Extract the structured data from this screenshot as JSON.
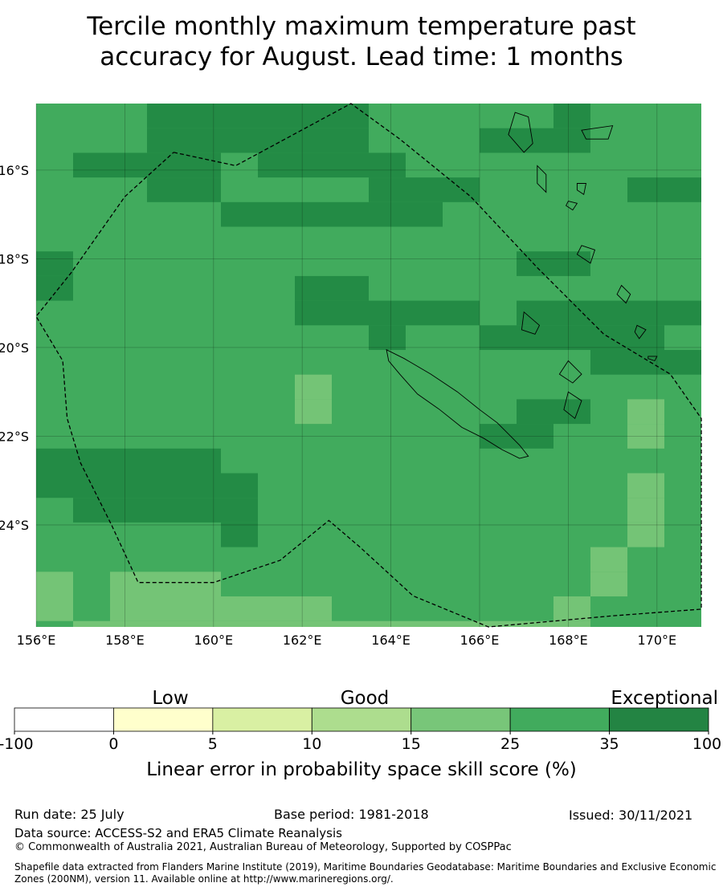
{
  "title_line1": "Tercile monthly maximum temperature past",
  "title_line2": "accuracy for August. Lead time: 1 months",
  "map": {
    "lon_labels": [
      "156°E",
      "158°E",
      "160°E",
      "162°E",
      "164°E",
      "166°E",
      "168°E",
      "170°E"
    ],
    "lat_labels": [
      "16°S",
      "18°S",
      "20°S",
      "22°S",
      "24°S"
    ],
    "grid_layers": [
      {
        "color": "#41ab5d",
        "cells": "all"
      },
      {
        "color": "#238b45",
        "cells": [
          [
            3,
            0
          ],
          [
            4,
            0
          ],
          [
            5,
            0
          ],
          [
            6,
            0
          ],
          [
            7,
            0
          ],
          [
            8,
            0
          ],
          [
            14,
            0
          ],
          [
            25,
            0
          ],
          [
            26,
            0
          ],
          [
            3,
            1
          ],
          [
            4,
            1
          ],
          [
            5,
            1
          ],
          [
            6,
            1
          ],
          [
            7,
            1
          ],
          [
            8,
            1
          ],
          [
            12,
            1
          ],
          [
            13,
            1
          ],
          [
            14,
            1
          ],
          [
            22,
            1
          ],
          [
            26,
            1
          ],
          [
            1,
            2
          ],
          [
            2,
            2
          ],
          [
            3,
            2
          ],
          [
            4,
            2
          ],
          [
            6,
            2
          ],
          [
            7,
            2
          ],
          [
            8,
            2
          ],
          [
            9,
            2
          ],
          [
            22,
            2
          ],
          [
            23,
            2
          ],
          [
            26,
            2
          ],
          [
            3,
            3
          ],
          [
            4,
            3
          ],
          [
            9,
            3
          ],
          [
            10,
            3
          ],
          [
            11,
            3
          ],
          [
            16,
            3
          ],
          [
            17,
            3
          ],
          [
            5,
            4
          ],
          [
            6,
            4
          ],
          [
            7,
            4
          ],
          [
            8,
            4
          ],
          [
            9,
            4
          ],
          [
            10,
            4
          ],
          [
            19,
            4
          ],
          [
            20,
            4
          ],
          [
            21,
            4
          ],
          [
            26,
            4
          ],
          [
            19,
            5
          ],
          [
            20,
            5
          ],
          [
            24,
            5
          ],
          [
            25,
            5
          ],
          [
            26,
            5
          ],
          [
            0,
            6
          ],
          [
            13,
            6
          ],
          [
            14,
            6
          ],
          [
            19,
            6
          ],
          [
            20,
            6
          ],
          [
            21,
            6
          ],
          [
            24,
            6
          ],
          [
            25,
            6
          ],
          [
            26,
            6
          ],
          [
            0,
            7
          ],
          [
            7,
            7
          ],
          [
            8,
            7
          ],
          [
            20,
            7
          ],
          [
            21,
            7
          ],
          [
            22,
            7
          ],
          [
            23,
            7
          ],
          [
            24,
            7
          ],
          [
            25,
            7
          ],
          [
            26,
            7
          ],
          [
            7,
            8
          ],
          [
            8,
            8
          ],
          [
            9,
            8
          ],
          [
            10,
            8
          ],
          [
            11,
            8
          ],
          [
            13,
            8
          ],
          [
            14,
            8
          ],
          [
            15,
            8
          ],
          [
            16,
            8
          ],
          [
            17,
            8
          ],
          [
            18,
            8
          ],
          [
            19,
            8
          ],
          [
            20,
            8
          ],
          [
            21,
            8
          ],
          [
            22,
            8
          ],
          [
            23,
            8
          ],
          [
            24,
            8
          ],
          [
            25,
            8
          ],
          [
            26,
            8
          ],
          [
            9,
            9
          ],
          [
            12,
            9
          ],
          [
            13,
            9
          ],
          [
            14,
            9
          ],
          [
            15,
            9
          ],
          [
            16,
            9
          ],
          [
            20,
            9
          ],
          [
            21,
            9
          ],
          [
            22,
            9
          ],
          [
            23,
            9
          ],
          [
            24,
            9
          ],
          [
            25,
            9
          ],
          [
            26,
            9
          ],
          [
            15,
            10
          ],
          [
            16,
            10
          ],
          [
            17,
            10
          ],
          [
            18,
            10
          ],
          [
            19,
            10
          ],
          [
            20,
            10
          ],
          [
            21,
            10
          ],
          [
            22,
            10
          ],
          [
            23,
            10
          ],
          [
            24,
            10
          ],
          [
            25,
            10
          ],
          [
            26,
            10
          ],
          [
            22,
            11
          ],
          [
            25,
            11
          ],
          [
            26,
            11
          ],
          [
            13,
            12
          ],
          [
            14,
            12
          ],
          [
            12,
            13
          ],
          [
            13,
            13
          ],
          [
            0,
            14
          ],
          [
            1,
            14
          ],
          [
            2,
            14
          ],
          [
            3,
            14
          ],
          [
            4,
            14
          ],
          [
            25,
            14
          ],
          [
            26,
            14
          ],
          [
            0,
            15
          ],
          [
            1,
            15
          ],
          [
            2,
            15
          ],
          [
            3,
            15
          ],
          [
            4,
            15
          ],
          [
            5,
            15
          ],
          [
            22,
            15
          ],
          [
            23,
            15
          ],
          [
            24,
            15
          ],
          [
            25,
            15
          ],
          [
            26,
            15
          ],
          [
            1,
            16
          ],
          [
            2,
            16
          ],
          [
            3,
            16
          ],
          [
            4,
            16
          ],
          [
            5,
            16
          ],
          [
            5,
            17
          ],
          [
            26,
            19
          ]
        ]
      },
      {
        "color": "#74c476",
        "cells": [
          [
            20,
            1
          ],
          [
            21,
            1
          ],
          [
            21,
            3
          ],
          [
            7,
            11
          ],
          [
            7,
            12
          ],
          [
            16,
            12
          ],
          [
            16,
            13
          ],
          [
            16,
            15
          ],
          [
            21,
            15
          ],
          [
            16,
            16
          ],
          [
            16,
            17
          ],
          [
            24,
            17
          ],
          [
            15,
            18
          ],
          [
            15,
            19
          ],
          [
            0,
            19
          ],
          [
            2,
            19
          ],
          [
            3,
            19
          ],
          [
            4,
            19
          ],
          [
            0,
            20
          ],
          [
            2,
            20
          ],
          [
            3,
            20
          ],
          [
            4,
            20
          ],
          [
            5,
            20
          ],
          [
            6,
            20
          ],
          [
            7,
            20
          ],
          [
            14,
            20
          ],
          [
            19,
            19
          ],
          [
            20,
            19
          ],
          [
            21,
            19
          ],
          [
            22,
            19
          ],
          [
            23,
            19
          ],
          [
            24,
            19
          ],
          [
            25,
            19
          ],
          [
            19,
            20
          ],
          [
            20,
            20
          ],
          [
            21,
            20
          ],
          [
            22,
            20
          ],
          [
            23,
            20
          ],
          [
            24,
            20
          ],
          [
            25,
            20
          ],
          [
            22,
            21
          ],
          [
            23,
            21
          ],
          [
            1,
            21
          ],
          [
            2,
            21
          ],
          [
            3,
            21
          ],
          [
            4,
            21
          ],
          [
            5,
            21
          ],
          [
            6,
            21
          ],
          [
            7,
            21
          ],
          [
            8,
            21
          ],
          [
            9,
            21
          ],
          [
            10,
            21
          ],
          [
            11,
            21
          ],
          [
            12,
            21
          ],
          [
            13,
            21
          ],
          [
            14,
            21
          ]
        ]
      }
    ],
    "boundary": [
      [
        159.1,
        -15.6
      ],
      [
        160.5,
        -15.9
      ],
      [
        163.1,
        -14.4
      ],
      [
        164.2,
        -15.3
      ],
      [
        165.8,
        -16.6
      ],
      [
        167.3,
        -18.2
      ],
      [
        168.8,
        -19.7
      ],
      [
        170.3,
        -20.6
      ],
      [
        171.3,
        -21.6
      ],
      [
        172.0,
        -21.8
      ],
      [
        172.8,
        -25.7
      ],
      [
        171.3,
        -25.9
      ],
      [
        169.0,
        -26.05
      ],
      [
        166.2,
        -26.35
      ],
      [
        164.5,
        -25.6
      ],
      [
        163.3,
        -24.5
      ],
      [
        162.6,
        -23.9
      ],
      [
        161.5,
        -24.8
      ],
      [
        160.0,
        -25.3
      ],
      [
        158.3,
        -25.3
      ],
      [
        157.7,
        -24.0
      ],
      [
        157.0,
        -22.6
      ],
      [
        156.7,
        -21.6
      ],
      [
        156.6,
        -20.3
      ],
      [
        155.8,
        -19.3
      ],
      [
        156.8,
        -18.3
      ],
      [
        158.0,
        -16.6
      ],
      [
        159.1,
        -15.6
      ]
    ],
    "islands": [
      [
        [
          163.9,
          -20.05
        ],
        [
          164.3,
          -20.25
        ],
        [
          164.9,
          -20.6
        ],
        [
          165.5,
          -21.0
        ],
        [
          166.0,
          -21.4
        ],
        [
          166.4,
          -21.7
        ],
        [
          166.9,
          -22.2
        ],
        [
          167.1,
          -22.45
        ],
        [
          166.9,
          -22.5
        ],
        [
          166.5,
          -22.3
        ],
        [
          166.1,
          -22.05
        ],
        [
          165.6,
          -21.8
        ],
        [
          165.1,
          -21.4
        ],
        [
          164.6,
          -21.05
        ],
        [
          164.2,
          -20.6
        ],
        [
          163.95,
          -20.3
        ],
        [
          163.9,
          -20.05
        ]
      ],
      [
        [
          167.0,
          -19.2
        ],
        [
          167.35,
          -19.5
        ],
        [
          167.25,
          -19.7
        ],
        [
          166.95,
          -19.6
        ],
        [
          167.0,
          -19.2
        ]
      ],
      [
        [
          168.0,
          -20.3
        ],
        [
          168.3,
          -20.6
        ],
        [
          168.1,
          -20.8
        ],
        [
          167.8,
          -20.6
        ],
        [
          168.0,
          -20.3
        ]
      ],
      [
        [
          168.0,
          -21.0
        ],
        [
          168.3,
          -21.2
        ],
        [
          168.15,
          -21.6
        ],
        [
          167.9,
          -21.4
        ],
        [
          168.0,
          -21.0
        ]
      ],
      [
        [
          168.3,
          -15.1
        ],
        [
          169.0,
          -15.0
        ],
        [
          168.9,
          -15.3
        ],
        [
          168.4,
          -15.3
        ],
        [
          168.3,
          -15.1
        ]
      ],
      [
        [
          166.8,
          -14.7
        ],
        [
          167.1,
          -14.8
        ],
        [
          167.2,
          -15.4
        ],
        [
          167.0,
          -15.6
        ],
        [
          166.65,
          -15.2
        ],
        [
          166.8,
          -14.7
        ]
      ],
      [
        [
          167.3,
          -15.9
        ],
        [
          167.5,
          -16.1
        ],
        [
          167.5,
          -16.5
        ],
        [
          167.3,
          -16.3
        ],
        [
          167.3,
          -15.9
        ]
      ],
      [
        [
          168.3,
          -17.7
        ],
        [
          168.6,
          -17.8
        ],
        [
          168.5,
          -18.1
        ],
        [
          168.2,
          -17.9
        ],
        [
          168.3,
          -17.7
        ]
      ],
      [
        [
          169.2,
          -18.6
        ],
        [
          169.4,
          -18.8
        ],
        [
          169.3,
          -19.0
        ],
        [
          169.1,
          -18.8
        ],
        [
          169.2,
          -18.6
        ]
      ],
      [
        [
          169.55,
          -19.5
        ],
        [
          169.75,
          -19.6
        ],
        [
          169.6,
          -19.8
        ],
        [
          169.5,
          -19.65
        ],
        [
          169.55,
          -19.5
        ]
      ],
      [
        [
          168.2,
          -16.3
        ],
        [
          168.4,
          -16.3
        ],
        [
          168.35,
          -16.55
        ],
        [
          168.2,
          -16.45
        ],
        [
          168.2,
          -16.3
        ]
      ],
      [
        [
          169.8,
          -20.2
        ],
        [
          170.0,
          -20.2
        ],
        [
          169.95,
          -20.3
        ],
        [
          169.8,
          -20.25
        ],
        [
          169.8,
          -20.2
        ]
      ],
      [
        [
          168.0,
          -16.7
        ],
        [
          168.2,
          -16.75
        ],
        [
          168.1,
          -16.9
        ],
        [
          167.95,
          -16.8
        ],
        [
          168.0,
          -16.7
        ]
      ]
    ]
  },
  "colorbar": {
    "category_labels": [
      "Low",
      "Good",
      "Exceptional"
    ],
    "bounds": [
      -100,
      0,
      5,
      10,
      15,
      25,
      35,
      100
    ],
    "tick_labels": [
      "-100",
      "0",
      "5",
      "10",
      "15",
      "25",
      "35",
      "100"
    ],
    "colors": [
      "#ffffff",
      "#ffffcc",
      "#d9f0a3",
      "#addd8e",
      "#78c679",
      "#41ab5d",
      "#238443"
    ],
    "label": "Linear error in probability space skill score (%)"
  },
  "footer": {
    "run_date": "Run date: 25 July",
    "base_period": "Base period: 1981-2018",
    "issued": "Issued: 30/11/2021",
    "data_source": "Data source: ACCESS-S2 and ERA5 Climate Reanalysis",
    "copyright": "© Commonwealth of Australia 2021, Australian Bureau of Meteorology, Supported by COSPPac",
    "shapefile_line1": "Shapefile data extracted from Flanders Marine Institute (2019), Maritime Boundaries Geodatabase: Maritime Boundaries and Exclusive Economic",
    "shapefile_line2": "Zones (200NM), version 11. Available online at http://www.marineregions.org/."
  }
}
